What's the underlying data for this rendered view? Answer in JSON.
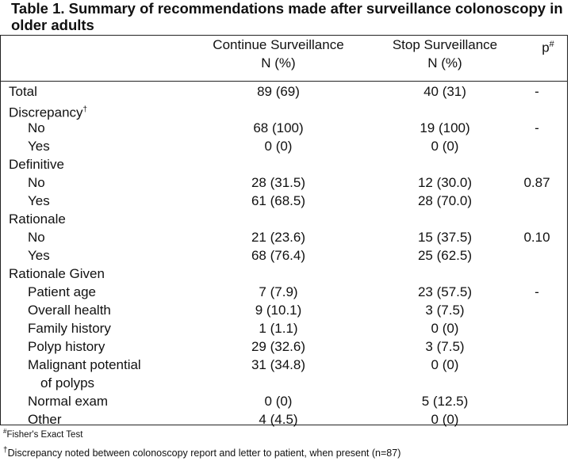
{
  "title": "Table 1. Summary of recommendations made after surveillance colonoscopy in older adults",
  "columns": {
    "continue_line1": "Continue Surveillance",
    "continue_line2": "N (%)",
    "stop_line1": "Stop Surveillance",
    "stop_line2": "N (%)",
    "p_label": "p",
    "p_mark": "#"
  },
  "rows": [
    {
      "label": "Total",
      "indent": false,
      "c1": "89 (69)",
      "c2": "40 (31)",
      "p": "-"
    },
    {
      "label": "Discrepancy",
      "mark": "†",
      "indent": false,
      "c1": "",
      "c2": "",
      "p": ""
    },
    {
      "label": "No",
      "indent": true,
      "c1": "68 (100)",
      "c2": "19 (100)",
      "p": "-"
    },
    {
      "label": "Yes",
      "indent": true,
      "c1": "0 (0)",
      "c2": "0 (0)",
      "p": ""
    },
    {
      "label": "Definitive",
      "indent": false,
      "c1": "",
      "c2": "",
      "p": ""
    },
    {
      "label": "No",
      "indent": true,
      "c1": "28 (31.5)",
      "c2": "12 (30.0)",
      "p": "0.87"
    },
    {
      "label": "Yes",
      "indent": true,
      "c1": "61 (68.5)",
      "c2": "28 (70.0)",
      "p": ""
    },
    {
      "label": "Rationale",
      "indent": false,
      "c1": "",
      "c2": "",
      "p": ""
    },
    {
      "label": "No",
      "indent": true,
      "c1": "21 (23.6)",
      "c2": "15 (37.5)",
      "p": "0.10"
    },
    {
      "label": "Yes",
      "indent": true,
      "c1": "68 (76.4)",
      "c2": "25 (62.5)",
      "p": ""
    },
    {
      "label": "Rationale Given",
      "indent": false,
      "c1": "",
      "c2": "",
      "p": ""
    },
    {
      "label": "Patient age",
      "indent": true,
      "c1": "7 (7.9)",
      "c2": "23 (57.5)",
      "p": "-"
    },
    {
      "label": "Overall health",
      "indent": true,
      "c1": "9 (10.1)",
      "c2": "3 (7.5)",
      "p": ""
    },
    {
      "label": "Family history",
      "indent": true,
      "c1": "1 (1.1)",
      "c2": "0 (0)",
      "p": ""
    },
    {
      "label": "Polyp history",
      "indent": true,
      "c1": "29 (32.6)",
      "c2": "3 (7.5)",
      "p": ""
    },
    {
      "label": "Malignant potential",
      "indent": true,
      "c1": "31 (34.8)",
      "c2": "0 (0)",
      "p": ""
    },
    {
      "label": "of polyps",
      "indent": true,
      "extra_indent": true,
      "c1": "",
      "c2": "",
      "p": ""
    },
    {
      "label": "Normal exam",
      "indent": true,
      "c1": "0  (0)",
      "c2": "5 (12.5)",
      "p": ""
    },
    {
      "label": "Other",
      "indent": true,
      "c1": "4 (4.5)",
      "c2": "0 (0)",
      "p": ""
    }
  ],
  "footnotes": {
    "fn1_mark": "#",
    "fn1_text": "Fisher's Exact Test",
    "fn2_mark": "†",
    "fn2_text": "Discrepancy noted between colonoscopy report and letter to patient, when present (n=87)"
  }
}
